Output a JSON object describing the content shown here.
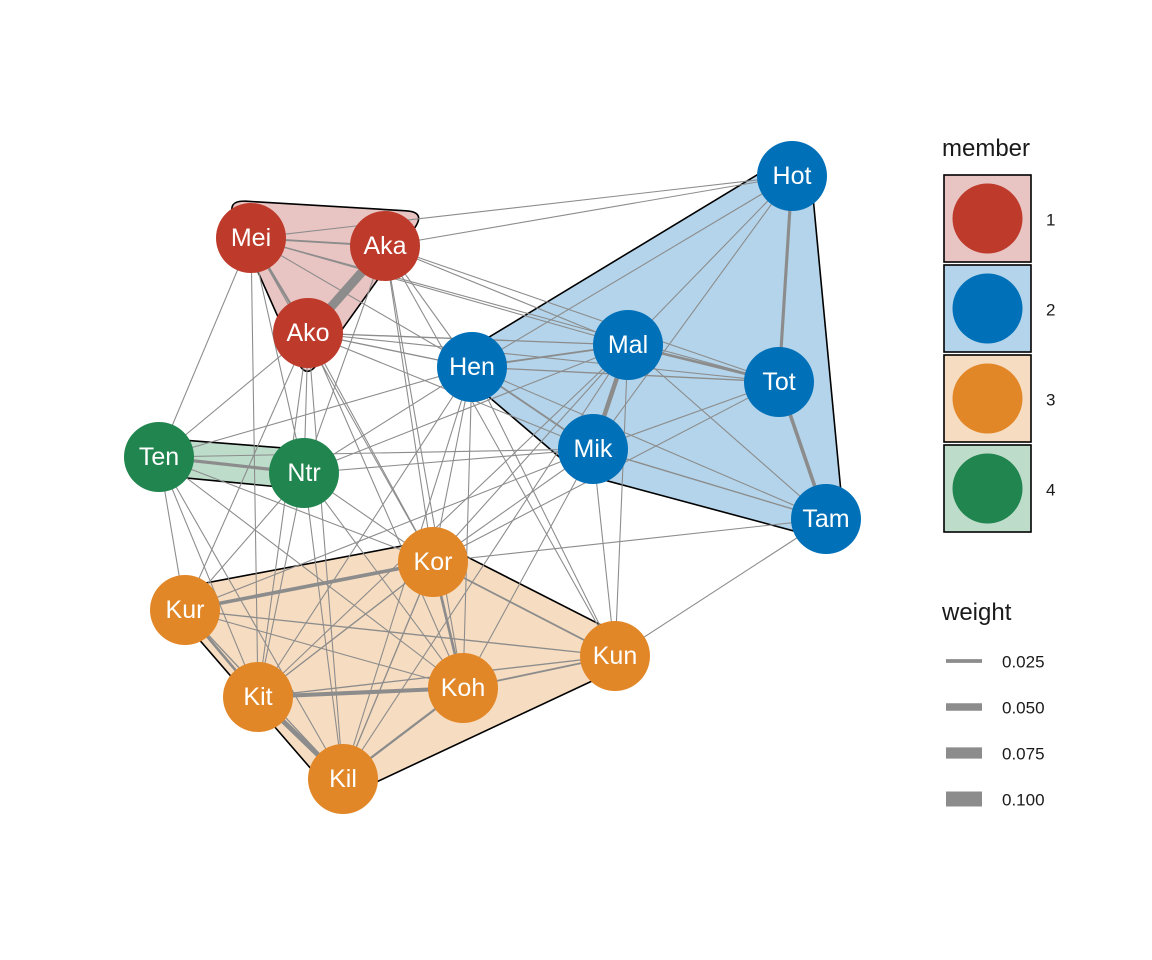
{
  "graph": {
    "groups": [
      {
        "id": "1",
        "fill": "#E8C4C2",
        "node_color": "#BE3A2B"
      },
      {
        "id": "2",
        "fill": "#B3D4EA",
        "node_color": "#0070B8"
      },
      {
        "id": "3",
        "fill": "#F6DCC0",
        "node_color": "#E28727"
      },
      {
        "id": "4",
        "fill": "#BDDCCA",
        "node_color": "#20854E"
      }
    ],
    "nodes": [
      {
        "label": "Mei",
        "group": "1"
      },
      {
        "label": "Aka",
        "group": "1"
      },
      {
        "label": "Ako",
        "group": "1"
      },
      {
        "label": "Hot",
        "group": "2"
      },
      {
        "label": "Mal",
        "group": "2"
      },
      {
        "label": "Hen",
        "group": "2"
      },
      {
        "label": "Tot",
        "group": "2"
      },
      {
        "label": "Mik",
        "group": "2"
      },
      {
        "label": "Tam",
        "group": "2"
      },
      {
        "label": "Ten",
        "group": "4"
      },
      {
        "label": "Ntr",
        "group": "4"
      },
      {
        "label": "Kor",
        "group": "3"
      },
      {
        "label": "Kur",
        "group": "3"
      },
      {
        "label": "Kun",
        "group": "3"
      },
      {
        "label": "Kit",
        "group": "3"
      },
      {
        "label": "Koh",
        "group": "3"
      },
      {
        "label": "Kil",
        "group": "3"
      }
    ],
    "edges": [
      {
        "from": "Aka",
        "to": "Ako",
        "weight": 0.1
      },
      {
        "from": "Mal",
        "to": "Mik",
        "weight": 0.05
      },
      {
        "from": "Kit",
        "to": "Kil",
        "weight": 0.055
      },
      {
        "from": "Kit",
        "to": "Koh",
        "weight": 0.045
      },
      {
        "from": "Kur",
        "to": "Kor",
        "weight": 0.04
      },
      {
        "from": "Tot",
        "to": "Tam",
        "weight": 0.04
      },
      {
        "from": "Hot",
        "to": "Tot",
        "weight": 0.035
      },
      {
        "from": "Ten",
        "to": "Ntr",
        "weight": 0.035
      },
      {
        "from": "Mal",
        "to": "Tot",
        "weight": 0.03
      },
      {
        "from": "Kor",
        "to": "Koh",
        "weight": 0.03
      },
      {
        "from": "Kur",
        "to": "Kit",
        "weight": 0.03
      },
      {
        "from": "Koh",
        "to": "Kil",
        "weight": 0.025
      },
      {
        "from": "Mei",
        "to": "Ako",
        "weight": 0.025
      },
      {
        "from": "Mei",
        "to": "Aka",
        "weight": 0.02
      },
      {
        "from": "Koh",
        "to": "Kun",
        "weight": 0.02
      },
      {
        "from": "Kor",
        "to": "Kun",
        "weight": 0.02
      },
      {
        "from": "Hen",
        "to": "Mik",
        "weight": 0.02
      },
      {
        "from": "Hen",
        "to": "Mal",
        "weight": 0.02
      },
      {
        "from": "Mik",
        "to": "Tam",
        "weight": 0.015
      },
      {
        "from": "Hen",
        "to": "Tot",
        "weight": 0.015
      },
      {
        "from": "Kit",
        "to": "Kor",
        "weight": 0.015
      },
      {
        "from": "Kur",
        "to": "Kil",
        "weight": 0.015
      },
      {
        "from": "Kit",
        "to": "Kun",
        "weight": 0.015
      },
      {
        "from": "Kur",
        "to": "Kun",
        "weight": 0.015
      },
      {
        "from": "Kor",
        "to": "Kil",
        "weight": 0.015
      },
      {
        "from": "Ako",
        "to": "Hen",
        "weight": 0.015
      },
      {
        "from": "Ako",
        "to": "Mal",
        "weight": 0.015
      },
      {
        "from": "Mei",
        "to": "Hot",
        "weight": 0.012
      },
      {
        "from": "Aka",
        "to": "Hot",
        "weight": 0.012
      },
      {
        "from": "Mei",
        "to": "Mal",
        "weight": 0.012
      },
      {
        "from": "Aka",
        "to": "Mal",
        "weight": 0.012
      },
      {
        "from": "Aka",
        "to": "Tot",
        "weight": 0.012
      },
      {
        "from": "Mei",
        "to": "Tot",
        "weight": 0.012
      },
      {
        "from": "Ako",
        "to": "Mik",
        "weight": 0.012
      },
      {
        "from": "Ako",
        "to": "Tot",
        "weight": 0.012
      },
      {
        "from": "Aka",
        "to": "Hen",
        "weight": 0.012
      },
      {
        "from": "Mei",
        "to": "Hen",
        "weight": 0.012
      },
      {
        "from": "Hen",
        "to": "Hot",
        "weight": 0.012
      },
      {
        "from": "Mal",
        "to": "Hot",
        "weight": 0.012
      },
      {
        "from": "Mik",
        "to": "Hot",
        "weight": 0.012
      },
      {
        "from": "Mik",
        "to": "Tot",
        "weight": 0.012
      },
      {
        "from": "Hen",
        "to": "Tam",
        "weight": 0.012
      },
      {
        "from": "Mal",
        "to": "Tam",
        "weight": 0.012
      },
      {
        "from": "Ten",
        "to": "Ako",
        "weight": 0.012
      },
      {
        "from": "Ntr",
        "to": "Ako",
        "weight": 0.012
      },
      {
        "from": "Ten",
        "to": "Mei",
        "weight": 0.012
      },
      {
        "from": "Ntr",
        "to": "Mei",
        "weight": 0.012
      },
      {
        "from": "Ntr",
        "to": "Aka",
        "weight": 0.012
      },
      {
        "from": "Ten",
        "to": "Hen",
        "weight": 0.012
      },
      {
        "from": "Ntr",
        "to": "Hen",
        "weight": 0.012
      },
      {
        "from": "Ten",
        "to": "Mik",
        "weight": 0.012
      },
      {
        "from": "Ntr",
        "to": "Mik",
        "weight": 0.012
      },
      {
        "from": "Ntr",
        "to": "Mal",
        "weight": 0.012
      },
      {
        "from": "Ten",
        "to": "Kur",
        "weight": 0.012
      },
      {
        "from": "Ten",
        "to": "Kit",
        "weight": 0.012
      },
      {
        "from": "Ten",
        "to": "Kor",
        "weight": 0.012
      },
      {
        "from": "Ntr",
        "to": "Kor",
        "weight": 0.012
      },
      {
        "from": "Ntr",
        "to": "Kur",
        "weight": 0.012
      },
      {
        "from": "Ntr",
        "to": "Kit",
        "weight": 0.012
      },
      {
        "from": "Ntr",
        "to": "Kil",
        "weight": 0.012
      },
      {
        "from": "Ntr",
        "to": "Koh",
        "weight": 0.012
      },
      {
        "from": "Ten",
        "to": "Kil",
        "weight": 0.012
      },
      {
        "from": "Ako",
        "to": "Kor",
        "weight": 0.012
      },
      {
        "from": "Ako",
        "to": "Kur",
        "weight": 0.012
      },
      {
        "from": "Ako",
        "to": "Kit",
        "weight": 0.012
      },
      {
        "from": "Ako",
        "to": "Kil",
        "weight": 0.012
      },
      {
        "from": "Ako",
        "to": "Koh",
        "weight": 0.012
      },
      {
        "from": "Mei",
        "to": "Kit",
        "weight": 0.012
      },
      {
        "from": "Mei",
        "to": "Kor",
        "weight": 0.012
      },
      {
        "from": "Aka",
        "to": "Kor",
        "weight": 0.012
      },
      {
        "from": "Aka",
        "to": "Koh",
        "weight": 0.012
      },
      {
        "from": "Aka",
        "to": "Kun",
        "weight": 0.012
      },
      {
        "from": "Mal",
        "to": "Kor",
        "weight": 0.012
      },
      {
        "from": "Mal",
        "to": "Kit",
        "weight": 0.012
      },
      {
        "from": "Mal",
        "to": "Kil",
        "weight": 0.012
      },
      {
        "from": "Mal",
        "to": "Kun",
        "weight": 0.012
      },
      {
        "from": "Mik",
        "to": "Kor",
        "weight": 0.012
      },
      {
        "from": "Mik",
        "to": "Kur",
        "weight": 0.012
      },
      {
        "from": "Mik",
        "to": "Kun",
        "weight": 0.012
      },
      {
        "from": "Mik",
        "to": "Koh",
        "weight": 0.012
      },
      {
        "from": "Hen",
        "to": "Kor",
        "weight": 0.012
      },
      {
        "from": "Hen",
        "to": "Kit",
        "weight": 0.012
      },
      {
        "from": "Hen",
        "to": "Kun",
        "weight": 0.012
      },
      {
        "from": "Hen",
        "to": "Koh",
        "weight": 0.012
      },
      {
        "from": "Hen",
        "to": "Kil",
        "weight": 0.012
      },
      {
        "from": "Tam",
        "to": "Kor",
        "weight": 0.012
      },
      {
        "from": "Tam",
        "to": "Kun",
        "weight": 0.012
      },
      {
        "from": "Tot",
        "to": "Kor",
        "weight": 0.012
      },
      {
        "from": "Kit",
        "to": "Kil",
        "weight": 0.012
      },
      {
        "from": "Kur",
        "to": "Koh",
        "weight": 0.012
      },
      {
        "from": "Ten",
        "to": "Koh",
        "weight": 0.012
      }
    ]
  },
  "legend": {
    "member": {
      "title": "member",
      "items": [
        {
          "label": "1",
          "fill": "#E8C4C2",
          "color": "#BE3A2B"
        },
        {
          "label": "2",
          "fill": "#B3D4EA",
          "color": "#0070B8"
        },
        {
          "label": "3",
          "fill": "#F6DCC0",
          "color": "#E28727"
        },
        {
          "label": "4",
          "fill": "#BDDCCA",
          "color": "#20854E"
        }
      ]
    },
    "weight": {
      "title": "weight",
      "items": [
        {
          "label": "0.025",
          "value": 0.025
        },
        {
          "label": "0.050",
          "value": 0.05
        },
        {
          "label": "0.075",
          "value": 0.075
        },
        {
          "label": "0.100",
          "value": 0.1
        }
      ]
    }
  }
}
